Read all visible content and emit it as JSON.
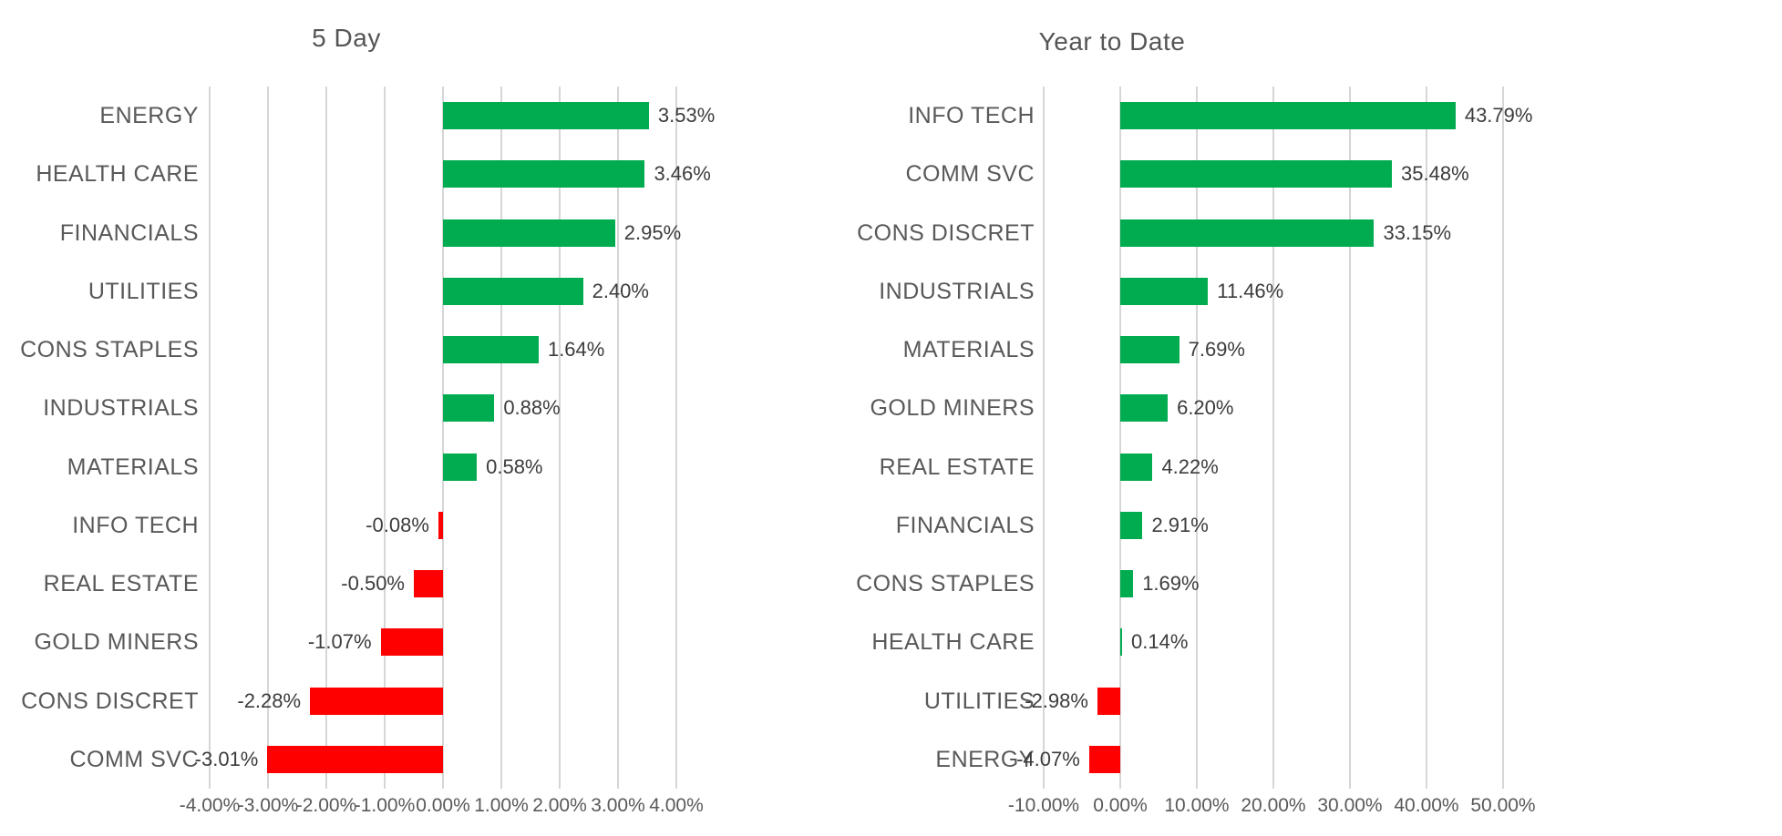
{
  "page": {
    "background": "#FFFFFF"
  },
  "colors": {
    "positive_bar": "#00AC4F",
    "negative_bar": "#FF0000",
    "gridline": "#D6D6D6",
    "category_text": "#595959",
    "tick_text": "#595959",
    "value_text": "#3C3C3C",
    "title_text": "#555555"
  },
  "chart_data": [
    {
      "type": "bar",
      "orientation": "horizontal",
      "title": "5 Day",
      "categories": [
        "ENERGY",
        "HEALTH CARE",
        "FINANCIALS",
        "UTILITIES",
        "CONS STAPLES",
        "INDUSTRIALS",
        "MATERIALS",
        "INFO TECH",
        "REAL ESTATE",
        "GOLD MINERS",
        "CONS DISCRET",
        "COMM SVC"
      ],
      "values": [
        3.53,
        3.46,
        2.95,
        2.4,
        1.64,
        0.88,
        0.58,
        -0.08,
        -0.5,
        -1.07,
        -2.28,
        -3.01
      ],
      "value_labels": [
        "3.53%",
        "3.46%",
        "2.95%",
        "2.40%",
        "1.64%",
        "0.88%",
        "0.58%",
        "-0.08%",
        "-0.50%",
        "-1.07%",
        "-2.28%",
        "-3.01%"
      ],
      "xlim": [
        -4,
        4
      ],
      "x_tick_values": [
        -4,
        -3,
        -2,
        -1,
        0,
        1,
        2,
        3,
        4
      ],
      "x_tick_labels": [
        "-4.00%",
        "-3.00%",
        "-2.00%",
        "-1.00%",
        "0.00%",
        "1.00%",
        "2.00%",
        "3.00%",
        "4.00%"
      ],
      "grid": true,
      "legend": "none"
    },
    {
      "type": "bar",
      "orientation": "horizontal",
      "title": "Year to Date",
      "categories": [
        "INFO TECH",
        "COMM SVC",
        "CONS DISCRET",
        "INDUSTRIALS",
        "MATERIALS",
        "GOLD MINERS",
        "REAL ESTATE",
        "FINANCIALS",
        "CONS STAPLES",
        "HEALTH CARE",
        "UTILITIES",
        "ENERGY"
      ],
      "values": [
        43.79,
        35.48,
        33.15,
        11.46,
        7.69,
        6.2,
        4.22,
        2.91,
        1.69,
        0.14,
        -2.98,
        -4.07
      ],
      "value_labels": [
        "43.79%",
        "35.48%",
        "33.15%",
        "11.46%",
        "7.69%",
        "6.20%",
        "4.22%",
        "2.91%",
        "1.69%",
        "0.14%",
        "-2.98%",
        "-4.07%"
      ],
      "xlim": [
        -10,
        50
      ],
      "x_tick_values": [
        -10,
        0,
        10,
        20,
        30,
        40,
        50
      ],
      "x_tick_labels": [
        "-10.00%",
        "0.00%",
        "10.00%",
        "20.00%",
        "30.00%",
        "40.00%",
        "50.00%"
      ],
      "grid": true,
      "legend": "none"
    }
  ]
}
